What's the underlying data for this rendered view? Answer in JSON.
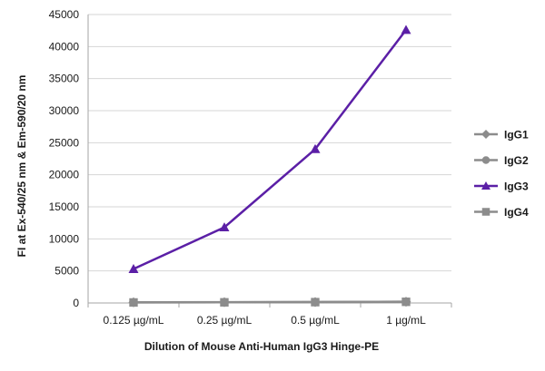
{
  "chart_data": {
    "type": "line",
    "title": "",
    "xlabel": "Dilution of Mouse Anti-Human IgG3 Hinge-PE",
    "ylabel": "FI at Ex-540/25 nm & Em-590/20 nm",
    "categories": [
      "0.125 µg/mL",
      "0.25 µg/mL",
      "0.5 µg/mL",
      "1 µg/mL"
    ],
    "ylim": [
      0,
      45000
    ],
    "yticks": [
      0,
      5000,
      10000,
      15000,
      20000,
      25000,
      30000,
      35000,
      40000,
      45000
    ],
    "grid": true,
    "legend_position": "right",
    "series": [
      {
        "name": "IgG1",
        "values": [
          100,
          120,
          150,
          200
        ],
        "color": "#8c8c8c",
        "marker": "diamond"
      },
      {
        "name": "IgG2",
        "values": [
          90,
          110,
          140,
          190
        ],
        "color": "#8c8c8c",
        "marker": "circle"
      },
      {
        "name": "IgG3",
        "values": [
          5300,
          11800,
          24000,
          42600
        ],
        "color": "#5b1fa6",
        "marker": "triangle"
      },
      {
        "name": "IgG4",
        "values": [
          80,
          100,
          130,
          180
        ],
        "color": "#8c8c8c",
        "marker": "square"
      }
    ]
  }
}
